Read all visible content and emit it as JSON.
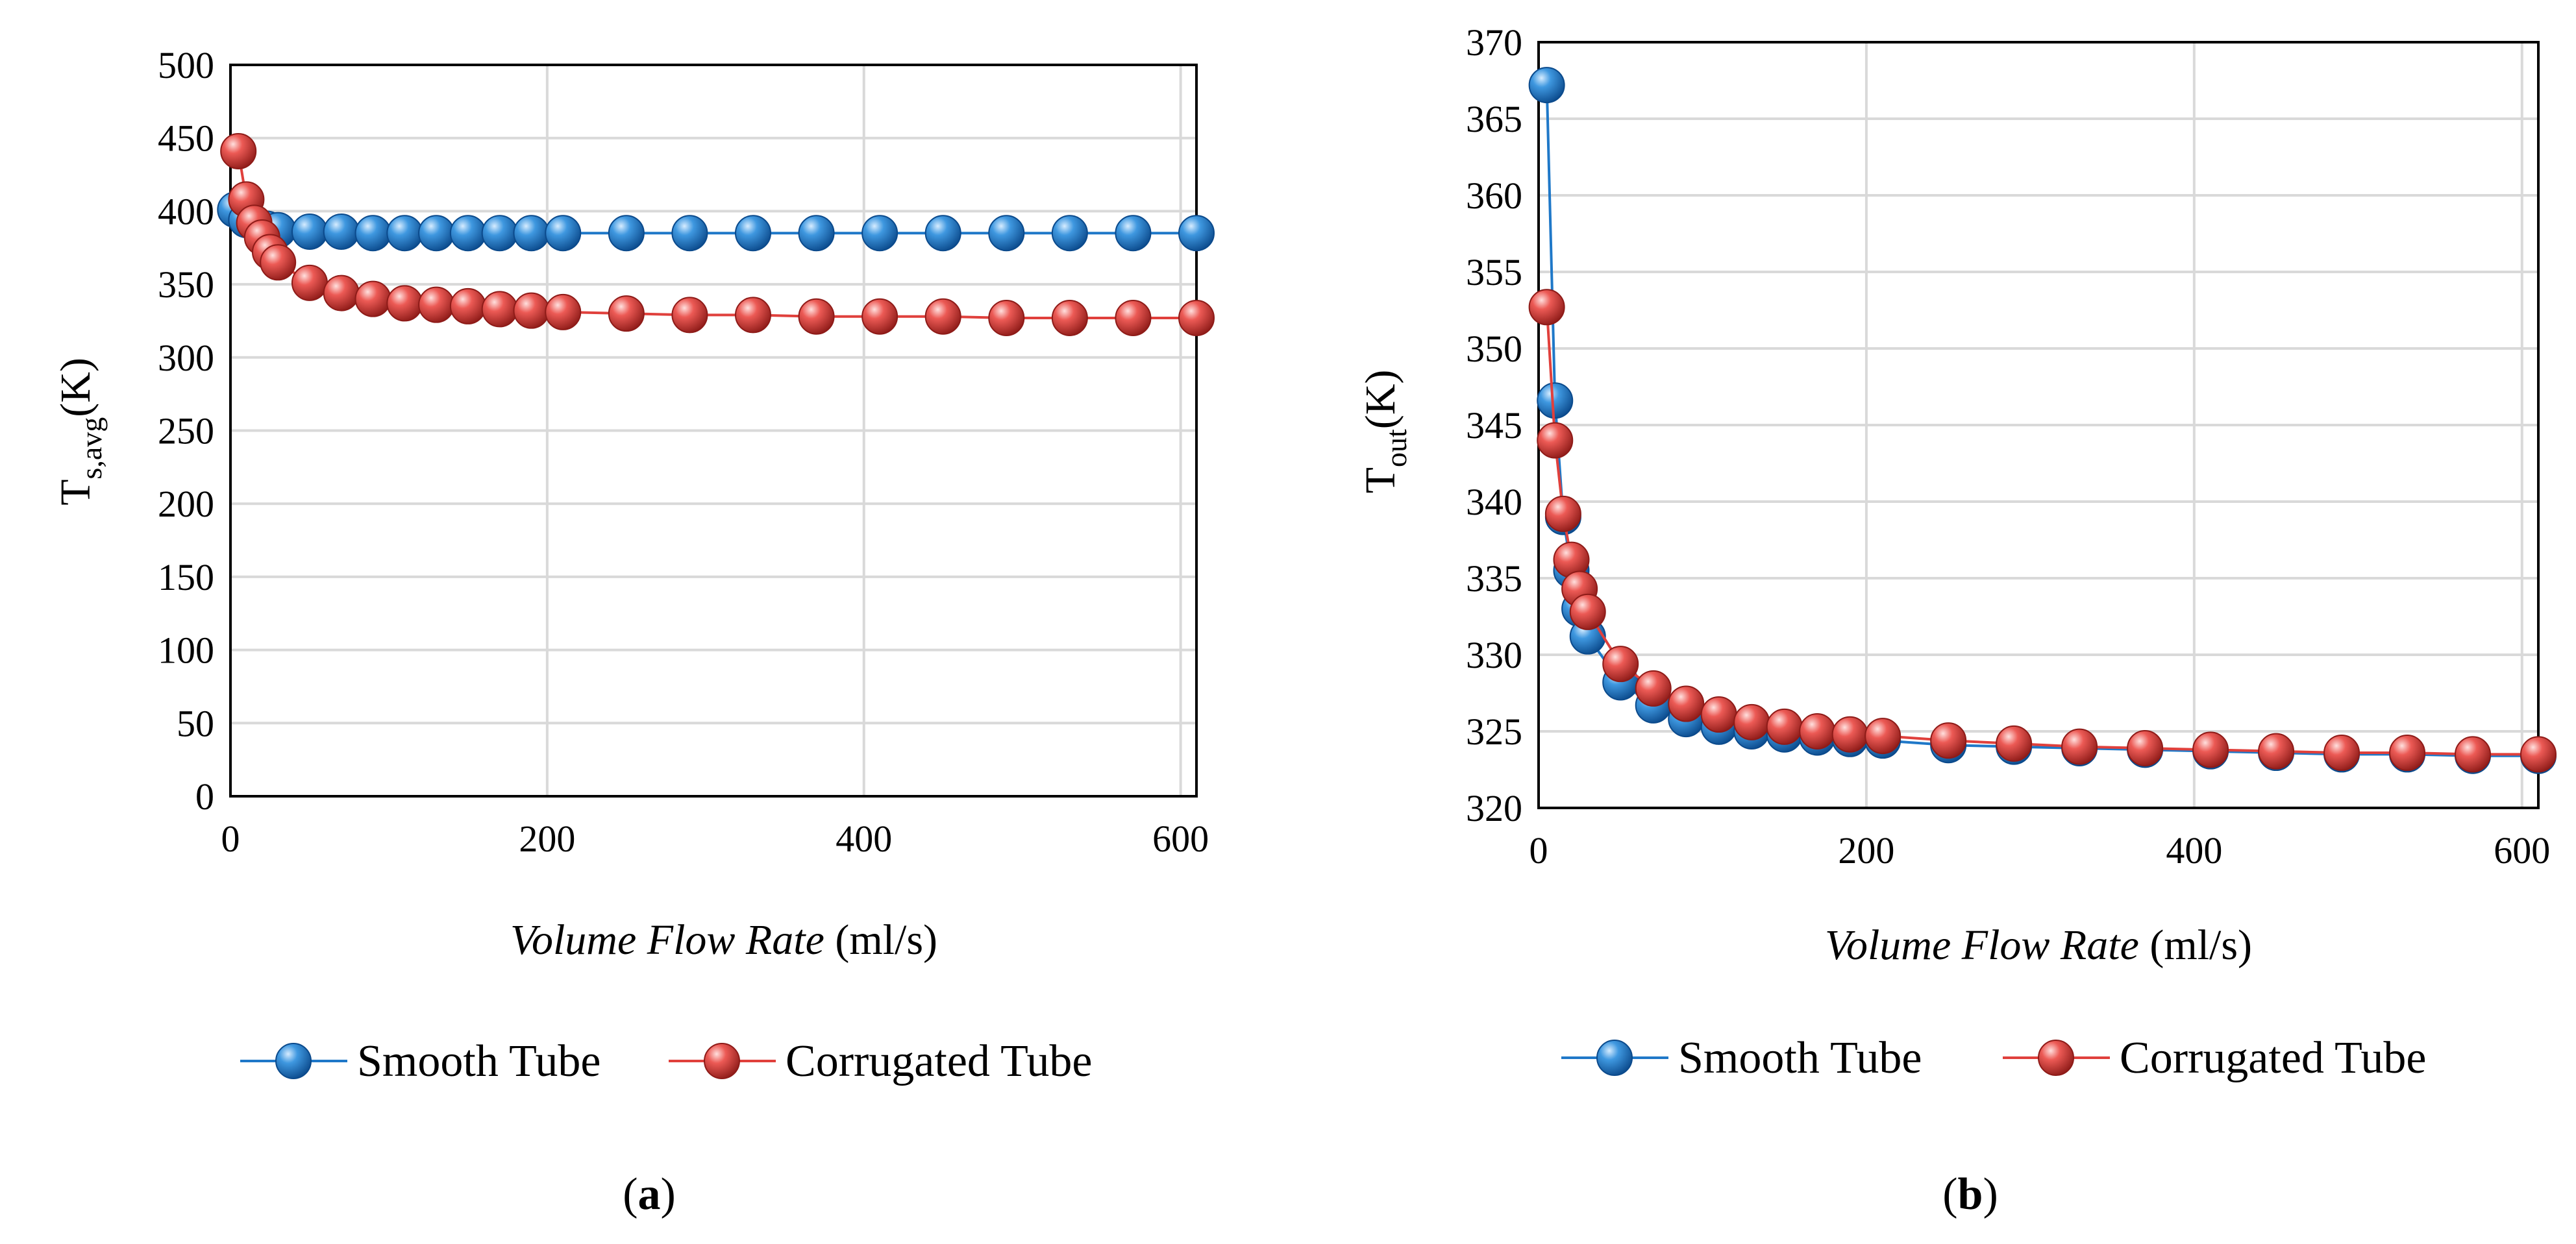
{
  "chart_data": [
    {
      "type": "line",
      "panel": "a",
      "caption_letter": "a",
      "xlabel_italic": "Volume Flow Rate",
      "xlabel_unit": " (ml/s)",
      "ylabel_main": "T",
      "ylabel_sub": "s,avg",
      "ylabel_unit": "(K)",
      "xlim": [
        0,
        610
      ],
      "ylim": [
        0,
        500
      ],
      "xticks": [
        0,
        200,
        400,
        600
      ],
      "yticks": [
        0,
        50,
        100,
        150,
        200,
        250,
        300,
        350,
        400,
        450,
        500
      ],
      "grid": true,
      "legend_position": "bottom",
      "series": [
        {
          "name": "Smooth Tube",
          "color": "#1f78c8",
          "x": [
            3,
            10,
            17,
            23,
            30,
            50,
            70,
            90,
            110,
            130,
            150,
            170,
            190,
            210,
            250,
            290,
            330,
            370,
            410,
            450,
            490,
            530,
            570,
            610
          ],
          "values": [
            401,
            394,
            390,
            388,
            387,
            386,
            386,
            385,
            385,
            385,
            385,
            385,
            385,
            385,
            385,
            385,
            385,
            385,
            385,
            385,
            385,
            385,
            385,
            385
          ]
        },
        {
          "name": "Corrugated Tube",
          "color": "#e0403c",
          "x": [
            5,
            10,
            15,
            20,
            25,
            30,
            50,
            70,
            90,
            110,
            130,
            150,
            170,
            190,
            210,
            250,
            290,
            330,
            370,
            410,
            450,
            490,
            530,
            570,
            610
          ],
          "values": [
            441,
            408,
            392,
            382,
            372,
            365,
            351,
            344,
            340,
            337,
            336,
            335,
            333,
            332,
            331,
            330,
            329,
            329,
            328,
            328,
            328,
            327,
            327,
            327,
            327
          ]
        }
      ]
    },
    {
      "type": "line",
      "panel": "b",
      "caption_letter": "b",
      "xlabel_italic": "Volume Flow Rate",
      "xlabel_unit": " (ml/s)",
      "ylabel_main": "T",
      "ylabel_sub": "out",
      "ylabel_unit": "(K)",
      "xlim": [
        0,
        610
      ],
      "ylim": [
        320,
        370
      ],
      "xticks": [
        0,
        200,
        400,
        600
      ],
      "yticks": [
        320,
        325,
        330,
        335,
        340,
        345,
        350,
        355,
        360,
        365,
        370
      ],
      "grid": true,
      "legend_position": "bottom",
      "series": [
        {
          "name": "Smooth Tube",
          "color": "#1f78c8",
          "x": [
            5,
            10,
            15,
            20,
            25,
            30,
            50,
            70,
            90,
            110,
            130,
            150,
            170,
            190,
            210,
            250,
            290,
            330,
            370,
            410,
            450,
            490,
            530,
            570,
            610
          ],
          "values": [
            367.2,
            346.6,
            339.0,
            335.5,
            333.0,
            331.2,
            328.2,
            326.7,
            325.8,
            325.3,
            325.0,
            324.8,
            324.6,
            324.5,
            324.4,
            324.1,
            324.0,
            323.9,
            323.8,
            323.7,
            323.6,
            323.5,
            323.5,
            323.4,
            323.4
          ]
        },
        {
          "name": "Corrugated Tube",
          "color": "#e0403c",
          "x": [
            5,
            10,
            15,
            20,
            25,
            30,
            50,
            70,
            90,
            110,
            130,
            150,
            170,
            190,
            210,
            250,
            290,
            330,
            370,
            410,
            450,
            490,
            530,
            570,
            610
          ],
          "values": [
            352.7,
            344.0,
            339.2,
            336.2,
            334.3,
            332.8,
            329.4,
            327.8,
            326.8,
            326.1,
            325.6,
            325.3,
            325.0,
            324.8,
            324.7,
            324.4,
            324.2,
            324.0,
            323.9,
            323.8,
            323.7,
            323.6,
            323.6,
            323.5,
            323.5
          ]
        }
      ]
    }
  ]
}
